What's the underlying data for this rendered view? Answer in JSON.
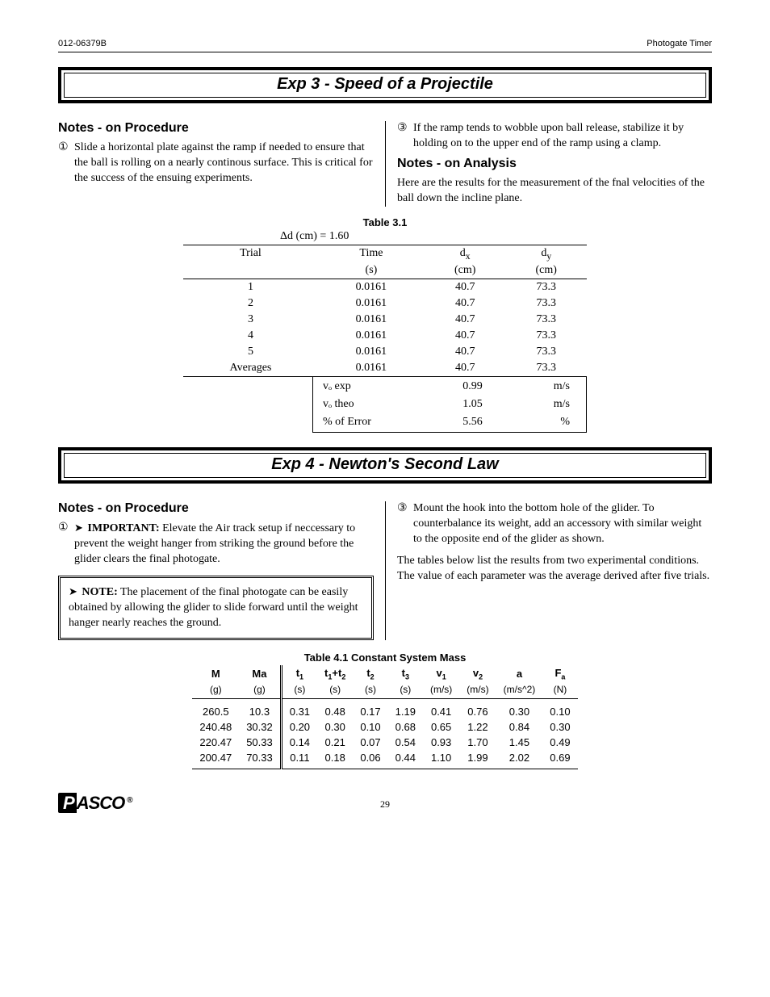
{
  "page": {
    "doc_id": "012-06379B",
    "product": "Photogate Timer",
    "number": "29"
  },
  "exp3": {
    "title": "Exp 3 - Speed of a Projectile",
    "proc_heading": "Notes - on Procedure",
    "proc1_mark": "①",
    "proc1": "Slide a horizontal plate against the ramp if needed to ensure that the ball is rolling on a nearly continous surface.  This is critical for the success of the ensuing experiments.",
    "proc3_mark": "③",
    "proc3": "If the ramp tends to wobble upon ball release, stabilize it by holding on to the upper end of the ramp using a clamp.",
    "analysis_heading": "Notes - on Analysis",
    "analysis_text": "Here are the results for the measurement of the fnal velocities of the ball down the incline plane.",
    "table": {
      "caption": "Table 3.1",
      "delta": "Δd (cm) = 1.60",
      "head": {
        "trial": "Trial",
        "time": "Time",
        "time_u": "(s)",
        "dx": "d",
        "dx_sub": "x",
        "dx_u": "(cm)",
        "dy": "d",
        "dy_sub": "y",
        "dy_u": "(cm)"
      },
      "rows": [
        {
          "trial": "1",
          "time": "0.0161",
          "dx": "40.7",
          "dy": "73.3"
        },
        {
          "trial": "2",
          "time": "0.0161",
          "dx": "40.7",
          "dy": "73.3"
        },
        {
          "trial": "3",
          "time": "0.0161",
          "dx": "40.7",
          "dy": "73.3"
        },
        {
          "trial": "4",
          "time": "0.0161",
          "dx": "40.7",
          "dy": "73.3"
        },
        {
          "trial": "5",
          "time": "0.0161",
          "dx": "40.7",
          "dy": "73.3"
        }
      ],
      "avg": {
        "trial": "Averages",
        "time": "0.0161",
        "dx": "40.7",
        "dy": "73.3"
      },
      "res": [
        {
          "lbl": "vₒ exp",
          "val": "0.99",
          "unit": "m/s"
        },
        {
          "lbl": "vₒ theo",
          "val": "1.05",
          "unit": "m/s"
        },
        {
          "lbl": "% of Error",
          "val": "5.56",
          "unit": "%"
        }
      ]
    }
  },
  "exp4": {
    "title": "Exp 4 - Newton's Second Law",
    "proc_heading": "Notes - on Procedure",
    "proc1_mark": "①",
    "proc1_important": "IMPORTANT:",
    "proc1": " Elevate the Air track setup if neccessary to prevent the weight hanger from striking the ground before the glider clears the final photogate.",
    "note_label": "NOTE:",
    "note_text": " The placement of the final photogate can be easily obtained by allowing the glider to slide forward until the weight hanger nearly reaches the ground.",
    "proc3_mark": "③",
    "proc3": "Mount the hook into the bottom hole of the glider.  To counterbalance its weight, add an accessory with similar weight to the opposite end of the glider as shown.",
    "results_text": "The tables below list the results from two experimental conditions.  The value of each parameter was the average derived after five trials.",
    "table": {
      "caption": "Table 4.1 Constant System Mass",
      "head": {
        "M": "M",
        "M_u": "(g)",
        "Ma": "Ma",
        "Ma_u": "(g)",
        "t1": "t",
        "t1_s": "1",
        "t1_u": "(s)",
        "t12": "t",
        "t12_s1": "1",
        "t12_plus": "+t",
        "t12_s2": "2",
        "t12_u": "(s)",
        "t2": "t",
        "t2_s": "2",
        "t2_u": "(s)",
        "t3": "t",
        "t3_s": "3",
        "t3_u": "(s)",
        "v1": "v",
        "v1_s": "1",
        "v1_u": "(m/s)",
        "v2": "v",
        "v2_s": "2",
        "v2_u": "(m/s)",
        "a": "a",
        "a_u": "(m/s^2)",
        "Fa": "F",
        "Fa_s": "a",
        "Fa_u": "(N)"
      },
      "rows": [
        {
          "M": "260.5",
          "Ma": "10.3",
          "t1": "0.31",
          "t12": "0.48",
          "t2": "0.17",
          "t3": "1.19",
          "v1": "0.41",
          "v2": "0.76",
          "a": "0.30",
          "Fa": "0.10"
        },
        {
          "M": "240.48",
          "Ma": "30.32",
          "t1": "0.20",
          "t12": "0.30",
          "t2": "0.10",
          "t3": "0.68",
          "v1": "0.65",
          "v2": "1.22",
          "a": "0.84",
          "Fa": "0.30"
        },
        {
          "M": "220.47",
          "Ma": "50.33",
          "t1": "0.14",
          "t12": "0.21",
          "t2": "0.07",
          "t3": "0.54",
          "v1": "0.93",
          "v2": "1.70",
          "a": "1.45",
          "Fa": "0.49"
        },
        {
          "M": "200.47",
          "Ma": "70.33",
          "t1": "0.11",
          "t12": "0.18",
          "t2": "0.06",
          "t3": "0.44",
          "v1": "1.10",
          "v2": "1.99",
          "a": "2.02",
          "Fa": "0.69"
        }
      ]
    }
  },
  "logo": {
    "p1": "P",
    "p2": "ASCO",
    "reg": "®"
  }
}
